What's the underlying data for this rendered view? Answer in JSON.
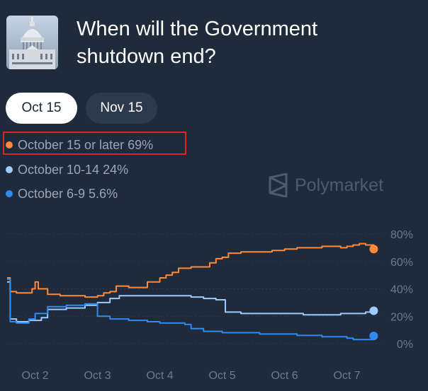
{
  "header": {
    "title": "When will the Government shutdown end?",
    "thumbnail_icon": "capitol-building-icon"
  },
  "tabs": [
    {
      "label": "Oct 15",
      "active": true
    },
    {
      "label": "Nov 15",
      "active": false
    }
  ],
  "legend": [
    {
      "label": "October 15 or later 69%",
      "color": "#ff8a3d"
    },
    {
      "label": "October 10-14 24%",
      "color": "#9ecbff"
    },
    {
      "label": "October 6-9 5.6%",
      "color": "#2e8cf0"
    }
  ],
  "watermark": {
    "text": "Polymarket",
    "icon": "polymarket-logo-icon"
  },
  "chart_data": {
    "type": "line",
    "x_ticks": [
      "Oct 2",
      "Oct 3",
      "Oct 4",
      "Oct 5",
      "Oct 6",
      "Oct 7"
    ],
    "y_ticks": [
      "80%",
      "60%",
      "40%",
      "20%",
      "0%"
    ],
    "xlim": [
      1.55,
      7.55
    ],
    "ylim": [
      0,
      80
    ],
    "grid": true,
    "series": [
      {
        "name": "October 15 or later",
        "color": "#ff8a3d",
        "points": [
          [
            1.55,
            48
          ],
          [
            1.6,
            38
          ],
          [
            1.7,
            37
          ],
          [
            1.85,
            37
          ],
          [
            1.95,
            40
          ],
          [
            2.0,
            45
          ],
          [
            2.05,
            40
          ],
          [
            2.2,
            36
          ],
          [
            2.4,
            35
          ],
          [
            2.6,
            35
          ],
          [
            2.8,
            34
          ],
          [
            3.0,
            35
          ],
          [
            3.1,
            37
          ],
          [
            3.2,
            38
          ],
          [
            3.3,
            42
          ],
          [
            3.5,
            41
          ],
          [
            3.7,
            41
          ],
          [
            3.8,
            45
          ],
          [
            4.0,
            48
          ],
          [
            4.1,
            50
          ],
          [
            4.2,
            52
          ],
          [
            4.3,
            55
          ],
          [
            4.5,
            56
          ],
          [
            4.8,
            59
          ],
          [
            4.9,
            62
          ],
          [
            5.0,
            63
          ],
          [
            5.1,
            66
          ],
          [
            5.3,
            67
          ],
          [
            5.6,
            67
          ],
          [
            5.8,
            68
          ],
          [
            6.0,
            69
          ],
          [
            6.2,
            70
          ],
          [
            6.4,
            70
          ],
          [
            6.6,
            71
          ],
          [
            6.9,
            70
          ],
          [
            7.0,
            71
          ],
          [
            7.1,
            72
          ],
          [
            7.2,
            73
          ],
          [
            7.3,
            72
          ],
          [
            7.4,
            72
          ],
          [
            7.43,
            69
          ]
        ]
      },
      {
        "name": "October 10-14",
        "color": "#9ecbff",
        "points": [
          [
            1.55,
            45
          ],
          [
            1.6,
            18
          ],
          [
            1.7,
            16
          ],
          [
            1.9,
            17
          ],
          [
            2.1,
            19
          ],
          [
            2.2,
            25
          ],
          [
            2.5,
            26
          ],
          [
            2.8,
            28
          ],
          [
            3.0,
            30
          ],
          [
            3.2,
            33
          ],
          [
            3.35,
            35
          ],
          [
            3.5,
            35
          ],
          [
            3.8,
            35
          ],
          [
            4.0,
            35
          ],
          [
            4.3,
            35
          ],
          [
            4.5,
            34
          ],
          [
            4.7,
            33
          ],
          [
            4.9,
            32
          ],
          [
            5.0,
            32
          ],
          [
            5.05,
            23
          ],
          [
            5.3,
            22
          ],
          [
            5.6,
            22
          ],
          [
            5.8,
            22
          ],
          [
            6.0,
            22
          ],
          [
            6.3,
            21
          ],
          [
            6.6,
            21
          ],
          [
            6.9,
            22
          ],
          [
            7.1,
            22
          ],
          [
            7.3,
            23
          ],
          [
            7.43,
            24
          ]
        ]
      },
      {
        "name": "October 6-9",
        "color": "#2e8cf0",
        "points": [
          [
            1.55,
            47
          ],
          [
            1.6,
            16
          ],
          [
            1.7,
            15
          ],
          [
            1.9,
            18
          ],
          [
            2.0,
            22
          ],
          [
            2.2,
            27
          ],
          [
            2.5,
            28
          ],
          [
            2.8,
            29
          ],
          [
            2.95,
            29
          ],
          [
            3.0,
            20
          ],
          [
            3.2,
            18
          ],
          [
            3.5,
            17
          ],
          [
            3.8,
            16
          ],
          [
            4.0,
            15
          ],
          [
            4.2,
            15
          ],
          [
            4.4,
            14
          ],
          [
            4.5,
            11
          ],
          [
            4.7,
            9
          ],
          [
            5.0,
            8
          ],
          [
            5.3,
            8
          ],
          [
            5.6,
            7
          ],
          [
            5.9,
            7
          ],
          [
            6.1,
            7
          ],
          [
            6.2,
            6
          ],
          [
            6.4,
            6
          ],
          [
            6.6,
            5
          ],
          [
            6.9,
            5
          ],
          [
            7.0,
            4
          ],
          [
            7.1,
            3
          ],
          [
            7.2,
            3
          ],
          [
            7.3,
            3
          ],
          [
            7.43,
            5.6
          ]
        ]
      }
    ]
  }
}
